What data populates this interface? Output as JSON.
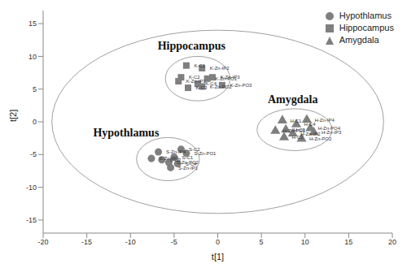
{
  "chart_data": {
    "type": "scatter",
    "x_label": "t[1]",
    "y_label": "t[2]",
    "xlim": [
      -20,
      20
    ],
    "xticks": [
      -20,
      -15,
      -10,
      -5,
      0,
      5,
      10,
      15,
      20
    ],
    "ylim": [
      -17,
      17
    ],
    "yticks": [
      -15,
      -10,
      -5,
      0,
      5,
      10,
      15
    ],
    "legend": "upper right",
    "confidence_ellipse": {
      "cx": 0,
      "cy": 0,
      "rx": 19,
      "ry": 14
    },
    "series": [
      {
        "name": "Hypothlamus",
        "color": "#7f7f7f",
        "marker": "circle",
        "x": [
          -4.2,
          -3.6,
          -6.8,
          -7.6,
          -5.0,
          -5.6,
          -6.4,
          -5.4,
          -4.6
        ],
        "y": [
          -4.2,
          -4.8,
          -4.6,
          -5.6,
          -5.4,
          -6.2,
          -5.8,
          -7.0,
          -6.4
        ],
        "labels": [
          "S-C2",
          "S-Zn-PO1",
          "S-Zn-IP4",
          "S-Zn-IP3",
          "S-C1",
          "S-Zn-PO2",
          "S-C3",
          "S-Zn-IP1",
          "S-C4"
        ],
        "ellipse": {
          "cx": -5.7,
          "cy": -5.7,
          "rx": 3.6,
          "ry": 3.3
        }
      },
      {
        "name": "Hippocampus",
        "color": "#7f7f7f",
        "marker": "square",
        "x": [
          -3.6,
          -1.8,
          -4.2,
          -4.5,
          -3.4,
          -1.2,
          -2.3,
          -1.8,
          -0.6,
          0.5
        ],
        "y": [
          8.6,
          8.2,
          6.8,
          6.2,
          5.2,
          6.6,
          5.8,
          5.4,
          6.8,
          5.6
        ],
        "labels": [
          "K-C1",
          "K-Zn-IP2",
          "K-C2",
          "K-Zn-IP1",
          "K-C3",
          "K-Zn-PO1",
          "K-C4",
          "K-Zn-PO2",
          "K-Zn-IP3",
          "K-Zn-PO3"
        ],
        "ellipse": {
          "cx": -2.3,
          "cy": 6.6,
          "rx": 3.7,
          "ry": 3.4
        }
      },
      {
        "name": "Amygdala",
        "color": "#7f7f7f",
        "marker": "triangle",
        "x": [
          7.4,
          10.2,
          9.0,
          6.6,
          7.8,
          10.6,
          11.0,
          7.6,
          9.6,
          8.6
        ],
        "y": [
          0.2,
          0.3,
          -0.4,
          -1.4,
          -1.2,
          -1.0,
          -1.6,
          -2.4,
          -2.6,
          -1.8
        ],
        "labels": [
          "H-C1",
          "H-Zn-IP4",
          "H-C4",
          "H-Zn-PO1",
          "H-C3",
          "H-Zn-PO4",
          "H-Zn-IP3",
          "H-C2",
          "H-Zn-PO2",
          "H-Zn-IP2"
        ],
        "ellipse": {
          "cx": 8.8,
          "cy": -1.2,
          "rx": 4.3,
          "ry": 3.2
        }
      }
    ],
    "annotations": [
      {
        "text": "Hippocampus",
        "x": -3,
        "y": 11.5
      },
      {
        "text": "Amygdala",
        "x": 8.6,
        "y": 3.2
      },
      {
        "text": "Hypothlamus",
        "x": -10.5,
        "y": -1.8
      }
    ]
  }
}
